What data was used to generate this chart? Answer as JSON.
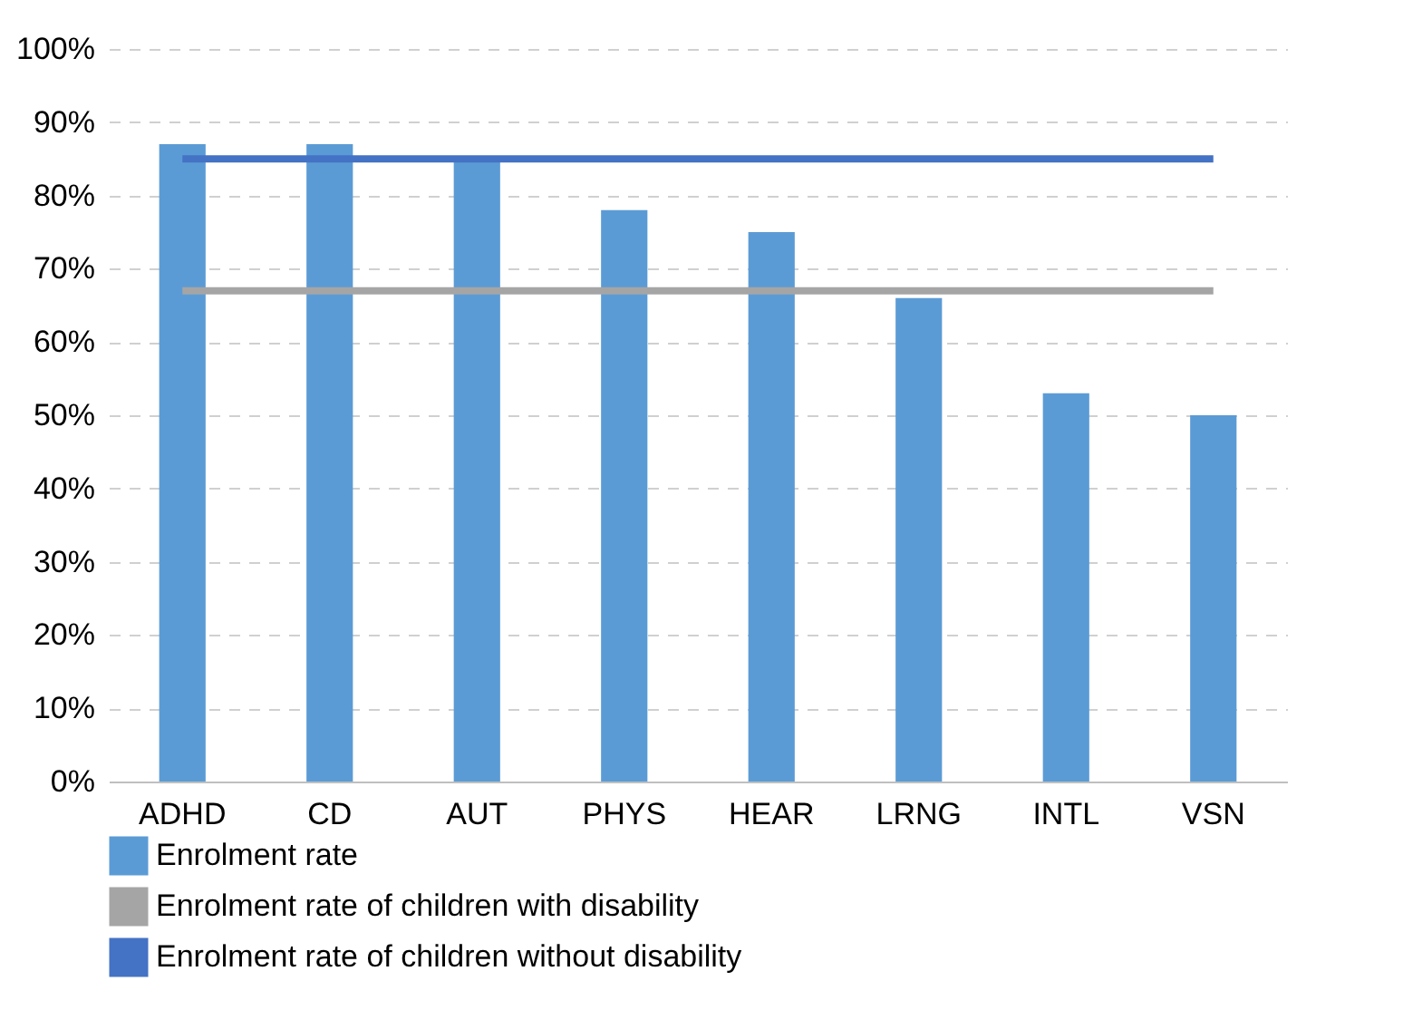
{
  "chart_data": {
    "type": "bar",
    "categories": [
      "ADHD",
      "CD",
      "AUT",
      "PHYS",
      "HEAR",
      "LRNG",
      "INTL",
      "VSN"
    ],
    "series": [
      {
        "name": "Enrolment rate",
        "color": "#5b9bd5",
        "values": [
          87,
          87,
          85,
          78,
          75,
          66,
          53,
          50
        ]
      },
      {
        "name": "Enrolment rate of children with disability",
        "type": "line",
        "color": "#a5a5a5",
        "values": [
          67,
          67,
          67,
          67,
          67,
          67,
          67,
          67
        ]
      },
      {
        "name": "Enrolment rate of children without disability",
        "type": "line",
        "color": "#4472c4",
        "values": [
          85,
          85,
          85,
          85,
          85,
          85,
          85,
          85
        ]
      }
    ],
    "ylim": [
      0,
      100
    ],
    "yticks": [
      {
        "value": 0,
        "label": "0%"
      },
      {
        "value": 10,
        "label": "10%"
      },
      {
        "value": 20,
        "label": "20%"
      },
      {
        "value": 30,
        "label": "30%"
      },
      {
        "value": 40,
        "label": "40%"
      },
      {
        "value": 50,
        "label": "50%"
      },
      {
        "value": 60,
        "label": "60%"
      },
      {
        "value": 70,
        "label": "70%"
      },
      {
        "value": 80,
        "label": "80%"
      },
      {
        "value": 90,
        "label": "90%"
      },
      {
        "value": 100,
        "label": "100%"
      }
    ],
    "grid": "y",
    "legend": "bottom"
  }
}
